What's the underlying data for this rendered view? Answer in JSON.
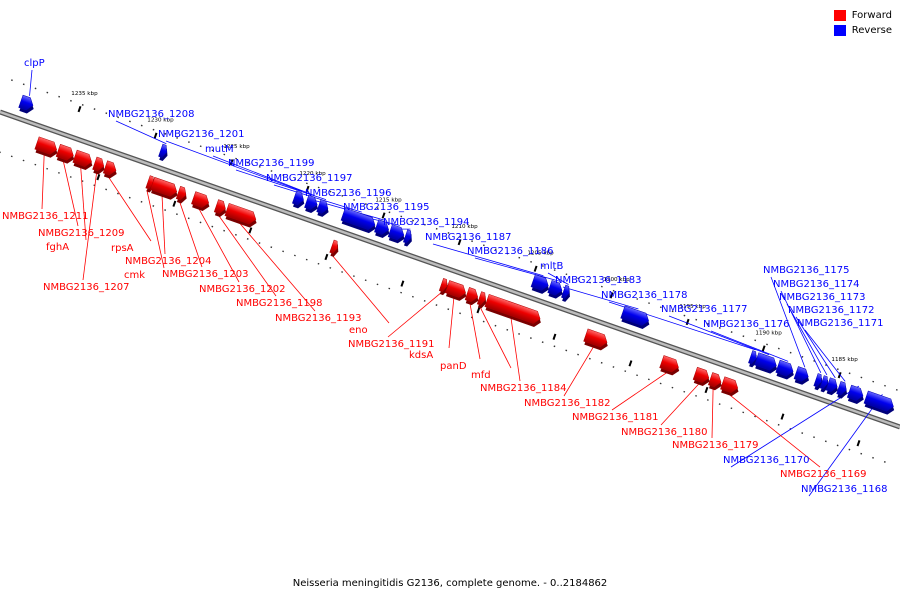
{
  "legend": {
    "forward_label": "Forward",
    "reverse_label": "Reverse",
    "forward_color": "#ff0000",
    "reverse_color": "#0000ff"
  },
  "caption": "Neisseria meningitidis G2136, complete genome. - 0..2184862",
  "scale_label_color": "#000000",
  "ticks": [
    {
      "kbp": 1235,
      "label": "1235 kbp"
    },
    {
      "kbp": 1230,
      "label": "1230 kbp"
    },
    {
      "kbp": 1225,
      "label": "1225 kbp"
    },
    {
      "kbp": 1220,
      "label": "1220 kbp"
    },
    {
      "kbp": 1215,
      "label": "1215 kbp"
    },
    {
      "kbp": 1210,
      "label": "1210 kbp"
    },
    {
      "kbp": 1205,
      "label": "1205 kbp"
    },
    {
      "kbp": 1200,
      "label": "1200 kbp"
    },
    {
      "kbp": 1195,
      "label": "1195 kbp"
    },
    {
      "kbp": 1190,
      "label": "1190 kbp"
    },
    {
      "kbp": 1185,
      "label": "1185 kbp"
    }
  ],
  "genes": [
    {
      "name": "clpP",
      "strand": "reverse",
      "start_kbp": 1238.6,
      "end_kbp": 1237.8
    },
    {
      "name": "NMBG2136_1208",
      "strand": "reverse",
      "start_kbp": 1229.4,
      "end_kbp": 1229.0
    },
    {
      "name": "NMBG2136_1201",
      "strand": "reverse",
      "start_kbp": 1220.6,
      "end_kbp": 1220.0
    },
    {
      "name": "mutM",
      "strand": "reverse",
      "start_kbp": 1219.8,
      "end_kbp": 1219.1
    },
    {
      "name": "NMBG2136_1199",
      "strand": "reverse",
      "start_kbp": 1219.0,
      "end_kbp": 1218.4
    },
    {
      "name": "NMBG2136_1197",
      "strand": "reverse",
      "start_kbp": 1217.4,
      "end_kbp": 1215.3
    },
    {
      "name": "NMBG2136_1196",
      "strand": "reverse",
      "start_kbp": 1215.2,
      "end_kbp": 1214.4
    },
    {
      "name": "NMBG2136_1195",
      "strand": "reverse",
      "start_kbp": 1214.3,
      "end_kbp": 1213.4
    },
    {
      "name": "NMBG2136_1194",
      "strand": "reverse",
      "start_kbp": 1213.3,
      "end_kbp": 1213.0
    },
    {
      "name": "NMBG2136_1187",
      "strand": "reverse",
      "start_kbp": 1204.9,
      "end_kbp": 1203.9
    },
    {
      "name": "NMBG2136_1186",
      "strand": "reverse",
      "start_kbp": 1203.8,
      "end_kbp": 1203.0
    },
    {
      "name": "mltB",
      "strand": "reverse",
      "start_kbp": 1202.9,
      "end_kbp": 1202.6
    },
    {
      "name": "NMBG2136_1183",
      "strand": "reverse",
      "start_kbp": 1199.0,
      "end_kbp": 1197.3
    },
    {
      "name": "NMBG2136_1178",
      "strand": "reverse",
      "start_kbp": 1190.6,
      "end_kbp": 1190.3
    },
    {
      "name": "NMBG2136_1177",
      "strand": "reverse",
      "start_kbp": 1190.2,
      "end_kbp": 1188.9
    },
    {
      "name": "NMBG2136_1176",
      "strand": "reverse",
      "start_kbp": 1188.8,
      "end_kbp": 1187.8
    },
    {
      "name": "NMBG2136_1175",
      "strand": "reverse",
      "start_kbp": 1187.6,
      "end_kbp": 1186.8
    },
    {
      "name": "NMBG2136_1174",
      "strand": "reverse",
      "start_kbp": 1186.3,
      "end_kbp": 1186.0
    },
    {
      "name": "NMBG2136_1173",
      "strand": "reverse",
      "start_kbp": 1185.9,
      "end_kbp": 1185.6
    },
    {
      "name": "NMBG2136_1172",
      "strand": "reverse",
      "start_kbp": 1185.5,
      "end_kbp": 1184.9
    },
    {
      "name": "NMBG2136_1171",
      "strand": "reverse",
      "start_kbp": 1184.8,
      "end_kbp": 1184.3
    },
    {
      "name": "NMBG2136_1170",
      "strand": "reverse",
      "start_kbp": 1184.1,
      "end_kbp": 1183.2
    },
    {
      "name": "NMBG2136_1168",
      "strand": "reverse",
      "start_kbp": 1183.0,
      "end_kbp": 1181.2
    },
    {
      "name": "NMBG2136_1211",
      "strand": "forward",
      "start_kbp": 1236.8,
      "end_kbp": 1235.5
    },
    {
      "name": "NMBG2136_1209",
      "strand": "forward",
      "start_kbp": 1235.4,
      "end_kbp": 1234.4
    },
    {
      "name": "fghA",
      "strand": "forward",
      "start_kbp": 1234.3,
      "end_kbp": 1233.2
    },
    {
      "name": "NMBG2136_1207",
      "strand": "forward",
      "start_kbp": 1233.0,
      "end_kbp": 1232.4
    },
    {
      "name": "rpsA",
      "strand": "forward",
      "start_kbp": 1232.3,
      "end_kbp": 1231.6
    },
    {
      "name": "cmk",
      "strand": "forward",
      "start_kbp": 1229.5,
      "end_kbp": 1229.3
    },
    {
      "name": "NMBG2136_1204",
      "strand": "forward",
      "start_kbp": 1229.2,
      "end_kbp": 1227.6
    },
    {
      "name": "NMBG2136_1203",
      "strand": "forward",
      "start_kbp": 1227.5,
      "end_kbp": 1227.0
    },
    {
      "name": "NMBG2136_1202",
      "strand": "forward",
      "start_kbp": 1226.5,
      "end_kbp": 1225.5
    },
    {
      "name": "NMBG2136_1198",
      "strand": "forward",
      "start_kbp": 1225.0,
      "end_kbp": 1224.4
    },
    {
      "name": "NMBG2136_1193",
      "strand": "forward",
      "start_kbp": 1224.3,
      "end_kbp": 1222.4
    },
    {
      "name": "eno",
      "strand": "forward",
      "start_kbp": 1217.4,
      "end_kbp": 1217.1
    },
    {
      "name": "NMBG2136_1191",
      "strand": "forward",
      "start_kbp": 1210.2,
      "end_kbp": 1209.9
    },
    {
      "name": "kdsA",
      "strand": "forward",
      "start_kbp": 1209.8,
      "end_kbp": 1208.6
    },
    {
      "name": "panD",
      "strand": "forward",
      "start_kbp": 1208.5,
      "end_kbp": 1207.8
    },
    {
      "name": "mfd",
      "strand": "forward",
      "start_kbp": 1207.7,
      "end_kbp": 1207.3
    },
    {
      "name": "NMBG2136_1184",
      "strand": "forward",
      "start_kbp": 1207.2,
      "end_kbp": 1203.7
    },
    {
      "name": "NMBG2136_1182",
      "strand": "forward",
      "start_kbp": 1200.7,
      "end_kbp": 1199.3
    },
    {
      "name": "NMBG2136_1181",
      "strand": "forward",
      "start_kbp": 1195.7,
      "end_kbp": 1194.6
    },
    {
      "name": "NMBG2136_1180",
      "strand": "forward",
      "start_kbp": 1193.5,
      "end_kbp": 1192.6
    },
    {
      "name": "NMBG2136_1179",
      "strand": "forward",
      "start_kbp": 1192.5,
      "end_kbp": 1191.8
    },
    {
      "name": "NMBG2136_1169",
      "strand": "forward",
      "start_kbp": 1191.7,
      "end_kbp": 1190.7
    }
  ]
}
